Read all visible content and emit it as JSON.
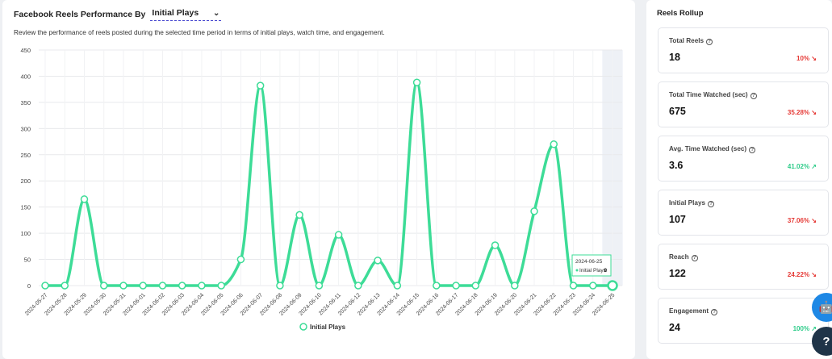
{
  "header": {
    "title": "Facebook Reels Performance By",
    "metric_select": "Initial Plays",
    "description": "Review the performance of reels posted during the selected time period in terms of initial plays, watch time, and engagement."
  },
  "chart_data": {
    "type": "line",
    "title": "",
    "xlabel": "",
    "ylabel": "",
    "ylim": [
      0,
      450
    ],
    "yticks": [
      0,
      50,
      100,
      150,
      200,
      250,
      300,
      350,
      400,
      450
    ],
    "grid": true,
    "legend_position": "bottom",
    "x": [
      "2024-05-27",
      "2024-05-28",
      "2024-05-29",
      "2024-05-30",
      "2024-05-31",
      "2024-06-01",
      "2024-06-02",
      "2024-06-03",
      "2024-06-04",
      "2024-06-05",
      "2024-06-06",
      "2024-06-07",
      "2024-06-08",
      "2024-06-09",
      "2024-06-10",
      "2024-06-11",
      "2024-06-12",
      "2024-06-13",
      "2024-06-14",
      "2024-06-15",
      "2024-06-16",
      "2024-06-17",
      "2024-06-18",
      "2024-06-19",
      "2024-06-20",
      "2024-06-21",
      "2024-06-22",
      "2024-06-23",
      "2024-06-24",
      "2024-06-25"
    ],
    "series": [
      {
        "name": "Initial Plays",
        "color": "#3ddc97",
        "values": [
          0,
          0,
          165,
          0,
          0,
          0,
          0,
          0,
          0,
          0,
          50,
          382,
          0,
          135,
          0,
          97,
          0,
          48,
          0,
          388,
          0,
          0,
          0,
          77,
          0,
          142,
          270,
          0,
          0,
          0
        ]
      }
    ],
    "tooltip": {
      "date": "2024-06-25",
      "label": "Initial Plays:",
      "value": "0"
    },
    "highlight_index": 29
  },
  "rollup": {
    "title": "Reels Rollup",
    "kpis": [
      {
        "label": "Total Reels",
        "value": "18",
        "change": "10%",
        "direction": "down"
      },
      {
        "label": "Total Time Watched (sec)",
        "value": "675",
        "change": "35.28%",
        "direction": "down"
      },
      {
        "label": "Avg. Time Watched (sec)",
        "value": "3.6",
        "change": "41.02%",
        "direction": "up"
      },
      {
        "label": "Initial Plays",
        "value": "107",
        "change": "37.06%",
        "direction": "down"
      },
      {
        "label": "Reach",
        "value": "122",
        "change": "24.22%",
        "direction": "down"
      },
      {
        "label": "Engagement",
        "value": "24",
        "change": "100%",
        "direction": "up"
      }
    ]
  },
  "icons": {
    "chevron": "chevron-down-icon",
    "help": "question-circle-icon",
    "arrow_down": "arrow-down-right-icon",
    "arrow_up": "arrow-up-right-icon",
    "bot": "robot-icon",
    "support": "help-icon"
  }
}
